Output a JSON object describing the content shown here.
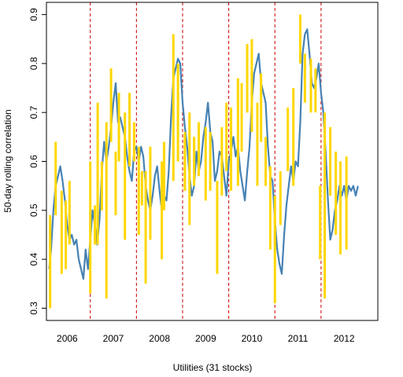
{
  "chart_data": {
    "type": "line",
    "title": "",
    "xlabel": "Utilities (31 stocks)",
    "ylabel": "50-day rolling correlation",
    "xlim": [
      2005.55,
      2012.73
    ],
    "ylim": [
      0.275,
      0.925
    ],
    "yticks": [
      0.3,
      0.4,
      0.5,
      0.6,
      0.7,
      0.8,
      0.9
    ],
    "ytick_labels": [
      "0.3",
      "0.4",
      "0.5",
      "0.6",
      "0.7",
      "0.8",
      "0.9"
    ],
    "year_labels": [
      {
        "x": 2006.0,
        "label": "2006"
      },
      {
        "x": 2007.0,
        "label": "2007"
      },
      {
        "x": 2008.0,
        "label": "2008"
      },
      {
        "x": 2009.0,
        "label": "2009"
      },
      {
        "x": 2010.0,
        "label": "2010"
      },
      {
        "x": 2011.0,
        "label": "2011"
      },
      {
        "x": 2012.0,
        "label": "2012"
      }
    ],
    "year_boundaries": [
      2006.5,
      2007.5,
      2008.5,
      2009.5,
      2010.5,
      2011.5
    ],
    "colors": {
      "line": "#4682B4",
      "bars": "#FFD700",
      "boundaries": "#CC0000",
      "frame": "#000000"
    },
    "series": [
      {
        "points": [
          [
            2005.61,
            0.38
          ],
          [
            2005.65,
            0.42
          ],
          [
            2005.7,
            0.5
          ],
          [
            2005.75,
            0.55
          ],
          [
            2005.8,
            0.57
          ],
          [
            2005.85,
            0.59
          ],
          [
            2005.9,
            0.56
          ],
          [
            2005.95,
            0.52
          ],
          [
            2006.0,
            0.47
          ],
          [
            2006.05,
            0.44
          ],
          [
            2006.1,
            0.45
          ],
          [
            2006.15,
            0.43
          ],
          [
            2006.2,
            0.44
          ],
          [
            2006.25,
            0.4
          ],
          [
            2006.3,
            0.38
          ],
          [
            2006.35,
            0.36
          ],
          [
            2006.4,
            0.42
          ],
          [
            2006.45,
            0.38
          ],
          [
            2006.5,
            0.44
          ],
          [
            2006.55,
            0.5
          ],
          [
            2006.6,
            0.47
          ],
          [
            2006.65,
            0.43
          ],
          [
            2006.7,
            0.48
          ],
          [
            2006.75,
            0.58
          ],
          [
            2006.8,
            0.64
          ],
          [
            2006.85,
            0.6
          ],
          [
            2006.9,
            0.63
          ],
          [
            2006.95,
            0.67
          ],
          [
            2007.0,
            0.72
          ],
          [
            2007.05,
            0.76
          ],
          [
            2007.1,
            0.68
          ],
          [
            2007.15,
            0.69
          ],
          [
            2007.2,
            0.67
          ],
          [
            2007.25,
            0.65
          ],
          [
            2007.3,
            0.61
          ],
          [
            2007.35,
            0.58
          ],
          [
            2007.4,
            0.56
          ],
          [
            2007.45,
            0.62
          ],
          [
            2007.5,
            0.63
          ],
          [
            2007.55,
            0.6
          ],
          [
            2007.6,
            0.63
          ],
          [
            2007.65,
            0.61
          ],
          [
            2007.7,
            0.55
          ],
          [
            2007.75,
            0.52
          ],
          [
            2007.8,
            0.5
          ],
          [
            2007.85,
            0.53
          ],
          [
            2007.9,
            0.57
          ],
          [
            2007.95,
            0.59
          ],
          [
            2008.0,
            0.54
          ],
          [
            2008.05,
            0.5
          ],
          [
            2008.1,
            0.53
          ],
          [
            2008.15,
            0.52
          ],
          [
            2008.2,
            0.58
          ],
          [
            2008.25,
            0.69
          ],
          [
            2008.3,
            0.77
          ],
          [
            2008.35,
            0.79
          ],
          [
            2008.4,
            0.81
          ],
          [
            2008.45,
            0.8
          ],
          [
            2008.5,
            0.72
          ],
          [
            2008.55,
            0.67
          ],
          [
            2008.6,
            0.63
          ],
          [
            2008.65,
            0.57
          ],
          [
            2008.7,
            0.53
          ],
          [
            2008.75,
            0.55
          ],
          [
            2008.8,
            0.62
          ],
          [
            2008.85,
            0.58
          ],
          [
            2008.9,
            0.6
          ],
          [
            2008.95,
            0.65
          ],
          [
            2009.0,
            0.68
          ],
          [
            2009.05,
            0.72
          ],
          [
            2009.1,
            0.66
          ],
          [
            2009.15,
            0.64
          ],
          [
            2009.2,
            0.56
          ],
          [
            2009.25,
            0.58
          ],
          [
            2009.3,
            0.62
          ],
          [
            2009.35,
            0.61
          ],
          [
            2009.4,
            0.57
          ],
          [
            2009.45,
            0.53
          ],
          [
            2009.5,
            0.6
          ],
          [
            2009.55,
            0.62
          ],
          [
            2009.6,
            0.65
          ],
          [
            2009.65,
            0.61
          ],
          [
            2009.7,
            0.63
          ],
          [
            2009.75,
            0.58
          ],
          [
            2009.8,
            0.55
          ],
          [
            2009.85,
            0.52
          ],
          [
            2009.9,
            0.58
          ],
          [
            2009.95,
            0.63
          ],
          [
            2010.0,
            0.72
          ],
          [
            2010.05,
            0.78
          ],
          [
            2010.1,
            0.8
          ],
          [
            2010.15,
            0.82
          ],
          [
            2010.2,
            0.76
          ],
          [
            2010.25,
            0.74
          ],
          [
            2010.3,
            0.72
          ],
          [
            2010.35,
            0.63
          ],
          [
            2010.4,
            0.57
          ],
          [
            2010.45,
            0.56
          ],
          [
            2010.5,
            0.48
          ],
          [
            2010.55,
            0.42
          ],
          [
            2010.6,
            0.39
          ],
          [
            2010.65,
            0.37
          ],
          [
            2010.7,
            0.45
          ],
          [
            2010.75,
            0.51
          ],
          [
            2010.8,
            0.55
          ],
          [
            2010.85,
            0.59
          ],
          [
            2010.9,
            0.56
          ],
          [
            2010.95,
            0.6
          ],
          [
            2011.0,
            0.59
          ],
          [
            2011.05,
            0.68
          ],
          [
            2011.1,
            0.82
          ],
          [
            2011.15,
            0.86
          ],
          [
            2011.2,
            0.87
          ],
          [
            2011.25,
            0.82
          ],
          [
            2011.3,
            0.76
          ],
          [
            2011.35,
            0.75
          ],
          [
            2011.4,
            0.77
          ],
          [
            2011.45,
            0.8
          ],
          [
            2011.5,
            0.74
          ],
          [
            2011.55,
            0.7
          ],
          [
            2011.6,
            0.62
          ],
          [
            2011.65,
            0.52
          ],
          [
            2011.7,
            0.44
          ],
          [
            2011.75,
            0.46
          ],
          [
            2011.8,
            0.5
          ],
          [
            2011.85,
            0.52
          ],
          [
            2011.9,
            0.55
          ],
          [
            2011.95,
            0.53
          ],
          [
            2012.0,
            0.55
          ],
          [
            2012.05,
            0.52
          ],
          [
            2012.1,
            0.55
          ],
          [
            2012.15,
            0.54
          ],
          [
            2012.2,
            0.55
          ],
          [
            2012.25,
            0.53
          ],
          [
            2012.3,
            0.55
          ]
        ]
      }
    ],
    "bars": [
      [
        2005.63,
        0.3,
        0.49
      ],
      [
        2005.75,
        0.49,
        0.64
      ],
      [
        2005.88,
        0.37,
        0.54
      ],
      [
        2005.97,
        0.38,
        0.52
      ],
      [
        2006.05,
        0.43,
        0.56
      ],
      [
        2006.5,
        0.33,
        0.6
      ],
      [
        2006.6,
        0.43,
        0.51
      ],
      [
        2006.66,
        0.43,
        0.72
      ],
      [
        2006.75,
        0.5,
        0.6
      ],
      [
        2006.85,
        0.32,
        0.68
      ],
      [
        2006.95,
        0.64,
        0.79
      ],
      [
        2007.05,
        0.49,
        0.62
      ],
      [
        2007.12,
        0.6,
        0.74
      ],
      [
        2007.25,
        0.44,
        0.7
      ],
      [
        2007.35,
        0.59,
        0.74
      ],
      [
        2007.45,
        0.6,
        0.68
      ],
      [
        2007.55,
        0.45,
        0.63
      ],
      [
        2007.62,
        0.51,
        0.58
      ],
      [
        2007.7,
        0.35,
        0.58
      ],
      [
        2007.8,
        0.44,
        0.63
      ],
      [
        2008.05,
        0.4,
        0.6
      ],
      [
        2008.1,
        0.5,
        0.64
      ],
      [
        2008.3,
        0.56,
        0.86
      ],
      [
        2008.4,
        0.6,
        0.8
      ],
      [
        2008.55,
        0.54,
        0.66
      ],
      [
        2008.65,
        0.47,
        0.7
      ],
      [
        2008.75,
        0.55,
        0.65
      ],
      [
        2008.85,
        0.57,
        0.68
      ],
      [
        2009.0,
        0.52,
        0.67
      ],
      [
        2009.1,
        0.54,
        0.66
      ],
      [
        2009.25,
        0.37,
        0.56
      ],
      [
        2009.35,
        0.53,
        0.67
      ],
      [
        2009.45,
        0.58,
        0.72
      ],
      [
        2009.55,
        0.54,
        0.71
      ],
      [
        2009.7,
        0.55,
        0.77
      ],
      [
        2009.78,
        0.62,
        0.76
      ],
      [
        2009.9,
        0.7,
        0.84
      ],
      [
        2010.0,
        0.66,
        0.85
      ],
      [
        2010.12,
        0.55,
        0.72
      ],
      [
        2010.2,
        0.64,
        0.78
      ],
      [
        2010.3,
        0.55,
        0.65
      ],
      [
        2010.4,
        0.42,
        0.59
      ],
      [
        2010.5,
        0.31,
        0.53
      ],
      [
        2010.62,
        0.47,
        0.58
      ],
      [
        2010.78,
        0.58,
        0.71
      ],
      [
        2010.9,
        0.55,
        0.75
      ],
      [
        2011.05,
        0.8,
        0.9
      ],
      [
        2011.15,
        0.72,
        0.82
      ],
      [
        2011.28,
        0.7,
        0.81
      ],
      [
        2011.38,
        0.7,
        0.79
      ],
      [
        2011.48,
        0.4,
        0.55
      ],
      [
        2011.58,
        0.32,
        0.7
      ],
      [
        2011.7,
        0.53,
        0.67
      ],
      [
        2011.82,
        0.45,
        0.62
      ],
      [
        2011.92,
        0.41,
        0.6
      ],
      [
        2012.05,
        0.42,
        0.61
      ]
    ]
  }
}
